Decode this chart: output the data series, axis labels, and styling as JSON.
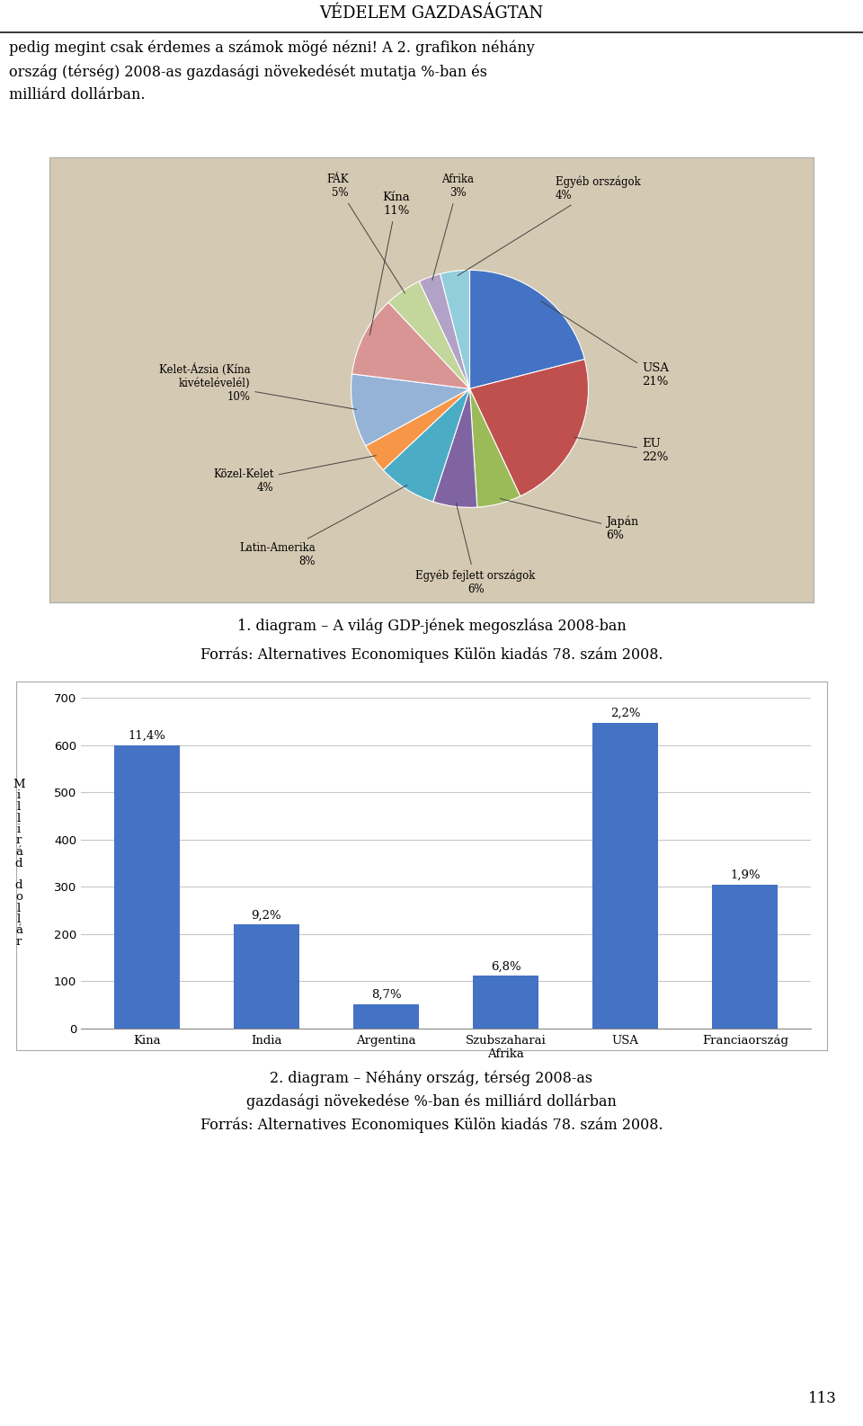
{
  "page_title": "VÉDELEM GAZDASÁGTAN",
  "intro_text": "pedig megint csak érdemes a számok mögé nézni! A 2. grafikon néhány\nország (térség) 2008-as gazdasági növekedését mutatja %-ban és\nmilliárd dollárban.",
  "pie_bg_color": "#d4c9b2",
  "pie_values": [
    21,
    22,
    6,
    6,
    8,
    4,
    10,
    11,
    5,
    3,
    4
  ],
  "pie_colors": [
    "#4472c4",
    "#c0504d",
    "#9bbb59",
    "#8064a2",
    "#4bacc6",
    "#f79646",
    "#95b3d7",
    "#d99594",
    "#c3d69b",
    "#b3a2c7",
    "#92cddc"
  ],
  "pie_label_configs": [
    [
      "USA\n21%",
      1.45,
      0.12,
      "left",
      "center",
      9.5
    ],
    [
      "EU\n22%",
      1.45,
      -0.52,
      "left",
      "center",
      9.5
    ],
    [
      "Japán\n6%",
      1.15,
      -1.18,
      "left",
      "center",
      9.0
    ],
    [
      "Egyéb fejlett országok\n6%",
      0.05,
      -1.52,
      "center",
      "top",
      8.5
    ],
    [
      "Latin-Amerika\n8%",
      -1.3,
      -1.4,
      "right",
      "center",
      8.5
    ],
    [
      "Közel-Kelet\n4%",
      -1.65,
      -0.78,
      "right",
      "center",
      8.5
    ],
    [
      "Kelet-Ázsia (Kína\nkivételévelél)\n10%",
      -1.85,
      0.05,
      "right",
      "center",
      8.5
    ],
    [
      "Kína\n11%",
      -0.62,
      1.45,
      "center",
      "bottom",
      9.5
    ],
    [
      "FÁK\n5%",
      -1.02,
      1.6,
      "right",
      "bottom",
      8.5
    ],
    [
      "Afrika\n3%",
      -0.1,
      1.6,
      "center",
      "bottom",
      8.5
    ],
    [
      "Egyéb országok\n4%",
      0.72,
      1.58,
      "left",
      "bottom",
      8.5
    ]
  ],
  "caption1_line1": "1. diagram – A világ GDP-jének megoszlása 2008-ban",
  "caption1_line2": "Forrás: Alternatives Economiques Külön kiadás 78. szám 2008.",
  "bar_categories": [
    "Kina",
    "India",
    "Argentina",
    "Szubszaharai\nAfrika",
    "USA",
    "Franciaország"
  ],
  "bar_values": [
    600,
    220,
    52,
    112,
    647,
    305
  ],
  "bar_pcts": [
    "11,4%",
    "9,2%",
    "8,7%",
    "6,8%",
    "2,2%",
    "1,9%"
  ],
  "bar_color": "#4472c4",
  "bar_yticks": [
    0,
    100,
    200,
    300,
    400,
    500,
    600,
    700
  ],
  "bar_ylim": [
    0,
    700
  ],
  "bar_ylabel_chars": [
    "M",
    "i",
    "l",
    "l",
    "i",
    "r",
    "á",
    "d",
    "",
    "d",
    "o",
    "l",
    "l",
    "á",
    "r"
  ],
  "caption2_line1": "2. diagram – Néhány ország, térség 2008-as",
  "caption2_line2": "gazdasági növekedése %-ban és milliárd dollárban",
  "caption2_line3": "Forrás: Alternatives Economiques Külön kiadás 78. szám 2008.",
  "page_number": "113"
}
